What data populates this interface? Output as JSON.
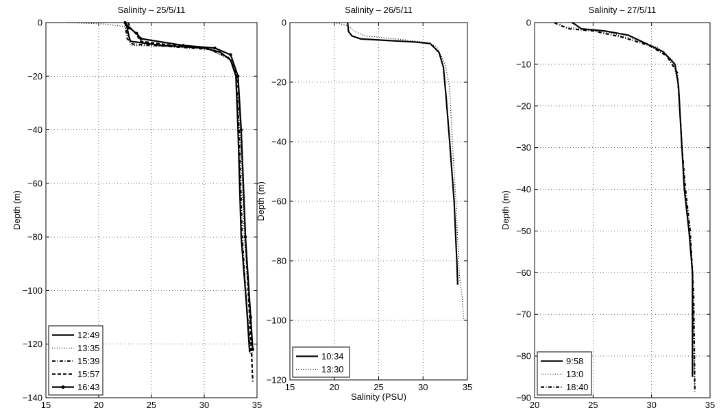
{
  "chart_data": [
    {
      "type": "line",
      "title": "Salinity – 25/5/11",
      "xlabel": "Salinity (PSU)",
      "ylabel": "Depth (m)",
      "xlim": [
        15,
        35
      ],
      "ylim": [
        -140,
        0
      ],
      "xticks": [
        15,
        20,
        25,
        30,
        35
      ],
      "yticks": [
        -140,
        -120,
        -100,
        -80,
        -60,
        -40,
        -20,
        0
      ],
      "xtick_labels": [
        "15",
        "20",
        "25",
        "30",
        "35"
      ],
      "ytick_labels": [
        "−140",
        "−120",
        "−100",
        "−80",
        "−60",
        "−40",
        "−20",
        "0"
      ],
      "grid": true,
      "legend_position": "bottom-left",
      "series": [
        {
          "name": "12:49",
          "style": "solid",
          "x": [
            22.6,
            22.7,
            22.8,
            23.0,
            26.0,
            30.0,
            31.5,
            32.5,
            33.0,
            33.2,
            33.5,
            34.0,
            34.3
          ],
          "y": [
            0,
            -2,
            -4,
            -7,
            -8.5,
            -9.5,
            -11,
            -14,
            -20,
            -40,
            -80,
            -105,
            -123
          ]
        },
        {
          "name": "13:35",
          "style": "dotted",
          "x": [
            17.0,
            20.5,
            22.5,
            22.7,
            23.0,
            27.0,
            30.5,
            32.5,
            33.2,
            33.4,
            33.8,
            34.3,
            34.6
          ],
          "y": [
            0,
            -0.5,
            -1.5,
            -4,
            -8.5,
            -9,
            -10,
            -14,
            -22,
            -40,
            -80,
            -108,
            -125
          ]
        },
        {
          "name": "15:39",
          "style": "dashdot",
          "x": [
            22.5,
            22.6,
            22.7,
            23.2,
            27.0,
            30.5,
            32.3,
            33.0,
            33.3,
            33.6,
            34.0,
            34.4
          ],
          "y": [
            0,
            -3,
            -6,
            -8,
            -9,
            -10,
            -13,
            -18,
            -40,
            -80,
            -105,
            -124
          ]
        },
        {
          "name": "15:57",
          "style": "dashed",
          "x": [
            22.8,
            23.0,
            23.5,
            24.0,
            27.0,
            30.0,
            31.5,
            32.5,
            33.2,
            33.5,
            33.9,
            34.3,
            34.5,
            34.6
          ],
          "y": [
            0,
            -2,
            -4,
            -7,
            -8.5,
            -9.5,
            -11,
            -14,
            -22,
            -40,
            -80,
            -110,
            -125,
            -134
          ]
        },
        {
          "name": "16:43",
          "style": "solid-marker",
          "x": [
            22.5,
            22.9,
            23.6,
            24.0,
            28.0,
            31.0,
            32.5,
            33.2,
            33.5,
            33.9,
            34.4,
            34.6
          ],
          "y": [
            0,
            -2,
            -4,
            -6,
            -8.5,
            -9.5,
            -12,
            -20,
            -40,
            -80,
            -110,
            -122
          ]
        }
      ]
    },
    {
      "type": "line",
      "title": "Salinity – 26/5/11",
      "xlabel": "Salinity (PSU)",
      "ylabel": "Depth (m)",
      "xlim": [
        15,
        35
      ],
      "ylim": [
        -120,
        0
      ],
      "xticks": [
        15,
        20,
        25,
        30,
        35
      ],
      "yticks": [
        -120,
        -100,
        -80,
        -60,
        -40,
        -20,
        0
      ],
      "xtick_labels": [
        "15",
        "20",
        "25",
        "30",
        "35"
      ],
      "ytick_labels": [
        "−120",
        "−100",
        "−80",
        "−60",
        "−40",
        "−20",
        "0"
      ],
      "grid": true,
      "legend_position": "bottom-left",
      "series": [
        {
          "name": "10:34",
          "style": "solid",
          "x": [
            21.5,
            21.6,
            22.0,
            23.0,
            26.0,
            29.0,
            30.8,
            31.8,
            32.3,
            32.6,
            33.0,
            33.5,
            33.8,
            33.9
          ],
          "y": [
            0,
            -3,
            -4.5,
            -5.5,
            -6,
            -6.5,
            -7,
            -10,
            -15,
            -25,
            -40,
            -60,
            -80,
            -88
          ]
        },
        {
          "name": "13:30",
          "style": "dotted",
          "x": [
            20.0,
            21.5,
            22.3,
            23.5,
            27.0,
            30.0,
            31.5,
            32.5,
            33.0,
            33.3,
            33.7,
            34.1,
            34.4,
            34.6
          ],
          "y": [
            0,
            -1,
            -3,
            -4.5,
            -5.5,
            -6.5,
            -8,
            -14,
            -22,
            -40,
            -60,
            -85,
            -92,
            -100
          ]
        }
      ]
    },
    {
      "type": "line",
      "title": "Salinity – 27/5/11",
      "xlabel": "Salinity (PSU)",
      "ylabel": "Depth (m)",
      "xlim": [
        20,
        35
      ],
      "ylim": [
        -90,
        0
      ],
      "xticks": [
        20,
        25,
        30,
        35
      ],
      "yticks": [
        -90,
        -80,
        -70,
        -60,
        -50,
        -40,
        -30,
        -20,
        -10,
        0
      ],
      "xtick_labels": [
        "20",
        "25",
        "30",
        "35"
      ],
      "ytick_labels": [
        "−90",
        "−80",
        "−70",
        "−60",
        "−50",
        "−40",
        "−30",
        "−20",
        "−10",
        "0"
      ],
      "grid": true,
      "legend_position": "bottom-left",
      "series": [
        {
          "name": "9:58",
          "style": "solid",
          "x": [
            23.2,
            23.5,
            24.0,
            26.0,
            28.0,
            29.5,
            31.0,
            32.0,
            32.3,
            32.4,
            32.6,
            32.8,
            33.2,
            33.5,
            33.5
          ],
          "y": [
            0,
            -0.5,
            -1.5,
            -2,
            -3,
            -5,
            -7,
            -10,
            -15,
            -20,
            -30,
            -40,
            -50,
            -60,
            -85
          ]
        },
        {
          "name": "13:0",
          "style": "dotted",
          "x": [
            22.0,
            22.5,
            24.0,
            26.5,
            28.5,
            30.5,
            31.8,
            32.3,
            32.5,
            32.7,
            33.0,
            33.4,
            33.6,
            33.7
          ],
          "y": [
            0,
            -1,
            -1.5,
            -2.5,
            -4,
            -6,
            -9,
            -15,
            -25,
            -35,
            -45,
            -55,
            -70,
            -89
          ]
        },
        {
          "name": "18:40",
          "style": "dashdot",
          "x": [
            21.7,
            22.0,
            23.0,
            25.0,
            27.5,
            29.8,
            31.3,
            32.2,
            32.4,
            32.6,
            32.9,
            33.3,
            33.6,
            33.7
          ],
          "y": [
            0,
            -0.5,
            -1.5,
            -2,
            -3.5,
            -5.5,
            -8,
            -12,
            -20,
            -30,
            -40,
            -50,
            -65,
            -88
          ]
        }
      ]
    }
  ]
}
